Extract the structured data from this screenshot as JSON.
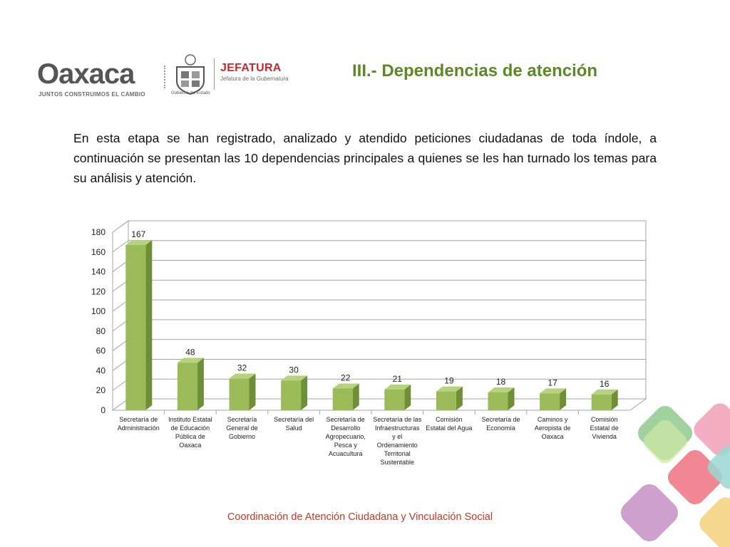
{
  "header": {
    "logo_word": "Oaxaca",
    "logo_tagline": "JUNTOS CONSTRUIMOS EL CAMBIO",
    "seal_label": "Gobierno del Estado",
    "jefatura_title": "JEFATURA",
    "jefatura_subtitle": "Jefatura de la Gubernatura",
    "title": "III.- Dependencias de atención"
  },
  "intro_text": "En esta etapa se han registrado, analizado y atendido peticiones ciudadanas de toda índole, a continuación se presentan las 10 dependencias principales a quienes se les han turnado los temas para su análisis y atención.",
  "chart_data": {
    "type": "bar",
    "style": "3d",
    "categories": [
      "Secretaría de Administración",
      "Instituto Estatal de Educación Pública de Oaxaca",
      "Secretaría General de Gobierno",
      "Secretaría del Salud",
      "Secretaría de Desarrollo Agropecuario, Pesca y Acuacultura",
      "Secretaría de las Infraestructuras y el Ordenamiento Territorial Sustentable",
      "Comisión Estatal del Agua",
      "Secretaría de Economía",
      "Caminos y Aeropista de Oaxaca",
      "Comisión Estatal de Vivienda"
    ],
    "category_lines": [
      [
        "Secretaría de",
        "Administración"
      ],
      [
        "Instituto Estatal",
        "de Educación",
        "Pública de",
        "Oaxaca"
      ],
      [
        "Secretaría",
        "General de",
        "Gobierno"
      ],
      [
        "Secretaría del",
        "Salud"
      ],
      [
        "Secretaría de",
        "Desarrollo",
        "Agropecuario,",
        "Pesca y",
        "Acuacultura"
      ],
      [
        "Secretaría de las",
        "Infraestructuras",
        "y el",
        "Ordenamiento",
        "Territorial",
        "Sustentable"
      ],
      [
        "Comisión",
        "Estatal del Agua"
      ],
      [
        "Secretaría de",
        "Economía"
      ],
      [
        "Caminos y",
        "Aeropista de",
        "Oaxaca"
      ],
      [
        "Comisión",
        "Estatal de",
        "Vivienda"
      ]
    ],
    "values": [
      167,
      48,
      32,
      30,
      22,
      21,
      19,
      18,
      17,
      16
    ],
    "ylim": [
      0,
      180
    ],
    "yticks": [
      0,
      20,
      40,
      60,
      80,
      100,
      120,
      140,
      160,
      180
    ],
    "title": "",
    "xlabel": "",
    "ylabel": "",
    "grid": true,
    "legend": "none",
    "bar_color": "#9bbb59",
    "bar_side_color": "#6f8f37",
    "bar_top_color": "#b7d27e"
  },
  "footer_text": "Coordinación de Atención Ciudadana y Vinculación Social",
  "colors": {
    "title_green": "#5b8a24",
    "footer_red": "#c0392b",
    "jefatura_red": "#c8272d"
  }
}
